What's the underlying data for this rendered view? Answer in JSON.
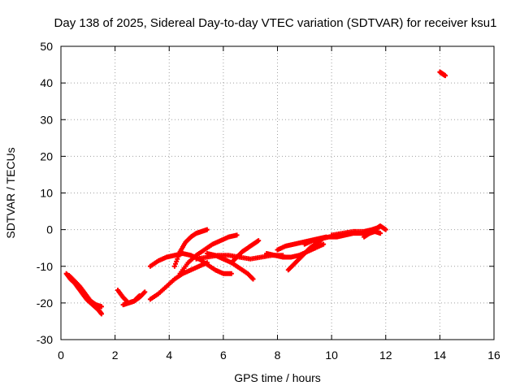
{
  "chart_data": {
    "type": "scatter",
    "title": "Day 138 of 2025, Sidereal Day-to-day VTEC variation (SDTVAR) for receiver ksu1",
    "xlabel": "GPS time / hours",
    "ylabel": "SDTVAR / TECUs",
    "xlim": [
      0,
      16
    ],
    "ylim": [
      -30,
      50
    ],
    "xticks": [
      0,
      2,
      4,
      6,
      8,
      10,
      12,
      14,
      16
    ],
    "yticks": [
      -30,
      -20,
      -10,
      0,
      10,
      20,
      30,
      40,
      50
    ],
    "grid": true,
    "marker_color": "#ff0000",
    "series": [
      {
        "name": "arc1",
        "x": [
          0.2,
          0.35,
          0.5,
          0.65,
          0.8,
          0.95,
          1.1,
          1.25,
          1.4,
          1.5
        ],
        "y": [
          -12,
          -13.5,
          -14.5,
          -16,
          -17.5,
          -19,
          -20,
          -21,
          -22,
          -23
        ]
      },
      {
        "name": "arc2",
        "x": [
          0.3,
          0.5,
          0.7,
          0.9,
          1.1,
          1.3,
          1.5
        ],
        "y": [
          -12.5,
          -14,
          -15.5,
          -17.5,
          -19.5,
          -20.5,
          -21
        ]
      },
      {
        "name": "arc3",
        "x": [
          2.1,
          2.3,
          2.5,
          2.7,
          2.9
        ],
        "y": [
          -16.5,
          -18.5,
          -20,
          -19.5,
          -18
        ]
      },
      {
        "name": "arc4",
        "x": [
          2.3,
          2.5,
          2.7,
          2.9,
          3.1
        ],
        "y": [
          -20.5,
          -20,
          -19.5,
          -18.5,
          -17
        ]
      },
      {
        "name": "arc5",
        "x": [
          3.3,
          3.6,
          3.9,
          4.2,
          4.5,
          4.8,
          5.1,
          5.4
        ],
        "y": [
          -19,
          -17.5,
          -15.5,
          -13.5,
          -12,
          -11,
          -10,
          -9
        ]
      },
      {
        "name": "arc6",
        "x": [
          3.3,
          3.6,
          3.9,
          4.2,
          4.5,
          4.8,
          5.1,
          5.4,
          5.7,
          6.0,
          6.3
        ],
        "y": [
          -10,
          -8.5,
          -7.5,
          -7,
          -6.5,
          -7,
          -8,
          -9.5,
          -11,
          -12,
          -12
        ]
      },
      {
        "name": "arc7",
        "x": [
          4.2,
          4.4,
          4.6,
          4.8,
          5.0,
          5.2,
          5.4
        ],
        "y": [
          -10,
          -6,
          -3.5,
          -2,
          -1,
          -0.5,
          0
        ]
      },
      {
        "name": "arc8",
        "x": [
          4.4,
          4.7,
          5.0,
          5.3,
          5.6,
          5.9,
          6.2,
          6.5
        ],
        "y": [
          -12,
          -9,
          -7,
          -5.5,
          -4,
          -3,
          -2,
          -1.5
        ]
      },
      {
        "name": "arc9",
        "x": [
          5.4,
          5.7,
          6.0,
          6.3,
          6.6,
          6.9,
          7.1
        ],
        "y": [
          -6.5,
          -7,
          -8,
          -9,
          -10.5,
          -12,
          -13.5
        ]
      },
      {
        "name": "arc10",
        "x": [
          5.0,
          5.4,
          5.8,
          6.2,
          6.6,
          7.0,
          7.4,
          7.8,
          8.2
        ],
        "y": [
          -8,
          -7.5,
          -7,
          -7,
          -7.5,
          -8,
          -7.5,
          -7,
          -7
        ]
      },
      {
        "name": "arc11",
        "x": [
          6.3,
          6.5,
          6.7,
          6.9,
          7.1,
          7.3
        ],
        "y": [
          -9,
          -7.5,
          -6,
          -5,
          -4,
          -3
        ]
      },
      {
        "name": "arc12",
        "x": [
          7.6,
          7.9,
          8.2,
          8.5,
          8.8,
          9.1,
          9.4,
          9.7
        ],
        "y": [
          -6.5,
          -7,
          -7.5,
          -7.5,
          -7,
          -6,
          -5,
          -4
        ]
      },
      {
        "name": "arc13",
        "x": [
          8.4,
          8.6,
          8.8,
          9.0,
          9.2,
          9.4,
          9.6
        ],
        "y": [
          -11,
          -9.5,
          -8,
          -6.5,
          -5,
          -4,
          -3
        ]
      },
      {
        "name": "arc14",
        "x": [
          8.0,
          8.3,
          8.6,
          8.9,
          9.2,
          9.5,
          9.8
        ],
        "y": [
          -5.5,
          -4.5,
          -4,
          -3.5,
          -3,
          -2.5,
          -2
        ]
      },
      {
        "name": "arc15",
        "x": [
          9.0,
          9.3,
          9.6,
          9.9,
          10.2,
          10.5,
          10.8,
          11.1,
          11.4
        ],
        "y": [
          -4,
          -3,
          -2.5,
          -2,
          -2,
          -1.5,
          -1,
          -1,
          -1
        ]
      },
      {
        "name": "arc16",
        "x": [
          10.0,
          10.4,
          10.8,
          11.2,
          11.5,
          11.7,
          11.8,
          12.0
        ],
        "y": [
          -1.5,
          -1,
          -0.5,
          -0.5,
          0,
          0.5,
          1,
          0
        ]
      },
      {
        "name": "arc17",
        "x": [
          11.2,
          11.4,
          11.6,
          11.8
        ],
        "y": [
          -2,
          -1,
          -0.5,
          -1
        ]
      },
      {
        "name": "arc18",
        "x": [
          14.0,
          14.1,
          14.2
        ],
        "y": [
          43,
          42.5,
          42
        ]
      }
    ]
  }
}
